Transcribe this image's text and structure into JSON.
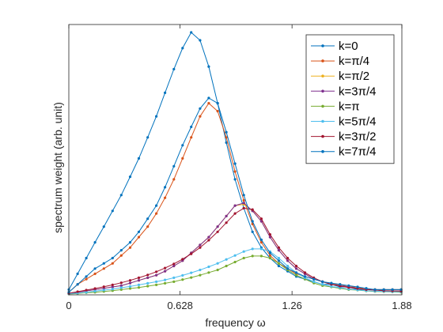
{
  "chart_data": {
    "type": "line",
    "xlabel": "frequency ω",
    "ylabel": "spectrum weight    (arb. unit)",
    "xlim": [
      0,
      1.88
    ],
    "ylim": [
      0,
      1
    ],
    "xticks": [
      {
        "value": 0,
        "label": "0"
      },
      {
        "value": 0.628,
        "label": "0.628"
      },
      {
        "value": 1.26,
        "label": "1.26"
      },
      {
        "value": 1.88,
        "label": "1.88"
      }
    ],
    "grid": false,
    "legend_position": "top-right",
    "series": [
      {
        "name": "k=0",
        "color": "#0072BD",
        "x": [
          0,
          0.0494,
          0.0988,
          0.148,
          0.198,
          0.247,
          0.296,
          0.346,
          0.395,
          0.445,
          0.494,
          0.543,
          0.593,
          0.642,
          0.691,
          0.741,
          0.79,
          0.84,
          0.889,
          0.938,
          0.988,
          1.037,
          1.087,
          1.136,
          1.185,
          1.235,
          1.284,
          1.333,
          1.383,
          1.432,
          1.482,
          1.531,
          1.58,
          1.63,
          1.679,
          1.728,
          1.778,
          1.827,
          1.876
        ],
        "y": [
          0.02,
          0.08,
          0.14,
          0.2,
          0.26,
          0.32,
          0.38,
          0.45,
          0.52,
          0.6,
          0.68,
          0.77,
          0.86,
          0.94,
          1.0,
          0.97,
          0.87,
          0.73,
          0.58,
          0.44,
          0.33,
          0.24,
          0.18,
          0.14,
          0.11,
          0.09,
          0.07,
          0.06,
          0.05,
          0.04,
          0.04,
          0.03,
          0.03,
          0.02,
          0.02,
          0.02,
          0.02,
          0.02,
          0.02
        ]
      },
      {
        "name": "k=π/4",
        "color": "#D95319",
        "x": [
          0,
          0.0494,
          0.0988,
          0.148,
          0.198,
          0.247,
          0.296,
          0.346,
          0.395,
          0.445,
          0.494,
          0.543,
          0.593,
          0.642,
          0.691,
          0.741,
          0.79,
          0.84,
          0.889,
          0.938,
          0.988,
          1.037,
          1.087,
          1.136,
          1.185,
          1.235,
          1.284,
          1.333,
          1.383,
          1.432,
          1.482,
          1.531,
          1.58,
          1.63,
          1.679,
          1.728,
          1.778,
          1.827,
          1.876
        ],
        "y": [
          0.01,
          0.04,
          0.06,
          0.08,
          0.1,
          0.12,
          0.15,
          0.18,
          0.22,
          0.26,
          0.31,
          0.37,
          0.44,
          0.52,
          0.6,
          0.68,
          0.73,
          0.7,
          0.6,
          0.47,
          0.36,
          0.27,
          0.2,
          0.15,
          0.12,
          0.1,
          0.08,
          0.07,
          0.06,
          0.05,
          0.04,
          0.04,
          0.03,
          0.03,
          0.02,
          0.02,
          0.02,
          0.02,
          0.02
        ]
      },
      {
        "name": "k=π/2",
        "color": "#EDB120",
        "x": [
          0,
          0.0494,
          0.0988,
          0.148,
          0.198,
          0.247,
          0.296,
          0.346,
          0.395,
          0.445,
          0.494,
          0.543,
          0.593,
          0.642,
          0.691,
          0.741,
          0.79,
          0.84,
          0.889,
          0.938,
          0.988,
          1.037,
          1.087,
          1.136,
          1.185,
          1.235,
          1.284,
          1.333,
          1.383,
          1.432,
          1.482,
          1.531,
          1.58,
          1.63,
          1.679,
          1.728,
          1.778,
          1.827,
          1.876
        ],
        "y": [
          0.005,
          0.01,
          0.015,
          0.02,
          0.025,
          0.03,
          0.035,
          0.045,
          0.055,
          0.065,
          0.075,
          0.09,
          0.11,
          0.13,
          0.16,
          0.19,
          0.22,
          0.26,
          0.3,
          0.34,
          0.345,
          0.32,
          0.28,
          0.22,
          0.17,
          0.13,
          0.1,
          0.08,
          0.06,
          0.05,
          0.04,
          0.035,
          0.03,
          0.025,
          0.02,
          0.02,
          0.015,
          0.015,
          0.015
        ]
      },
      {
        "name": "k=3π/4",
        "color": "#7E2F8E",
        "x": [
          0,
          0.0494,
          0.0988,
          0.148,
          0.198,
          0.247,
          0.296,
          0.346,
          0.395,
          0.445,
          0.494,
          0.543,
          0.593,
          0.642,
          0.691,
          0.741,
          0.79,
          0.84,
          0.889,
          0.938,
          0.988,
          1.037,
          1.087,
          1.136,
          1.185,
          1.235,
          1.284,
          1.333,
          1.383,
          1.432,
          1.482,
          1.531,
          1.58,
          1.63,
          1.679,
          1.728,
          1.778,
          1.827,
          1.876
        ],
        "y": [
          0.005,
          0.01,
          0.015,
          0.02,
          0.025,
          0.03,
          0.035,
          0.045,
          0.055,
          0.065,
          0.075,
          0.09,
          0.11,
          0.13,
          0.16,
          0.19,
          0.22,
          0.26,
          0.3,
          0.34,
          0.35,
          0.32,
          0.28,
          0.22,
          0.17,
          0.13,
          0.1,
          0.08,
          0.06,
          0.05,
          0.04,
          0.035,
          0.03,
          0.025,
          0.02,
          0.02,
          0.015,
          0.015,
          0.015
        ]
      },
      {
        "name": "k=π",
        "color": "#77AC30",
        "x": [
          0,
          0.0494,
          0.0988,
          0.148,
          0.198,
          0.247,
          0.296,
          0.346,
          0.395,
          0.445,
          0.494,
          0.543,
          0.593,
          0.642,
          0.691,
          0.741,
          0.79,
          0.84,
          0.889,
          0.938,
          0.988,
          1.037,
          1.087,
          1.136,
          1.185,
          1.235,
          1.284,
          1.333,
          1.383,
          1.432,
          1.482,
          1.531,
          1.58,
          1.63,
          1.679,
          1.728,
          1.778,
          1.827,
          1.876
        ],
        "y": [
          0.003,
          0.005,
          0.008,
          0.01,
          0.013,
          0.016,
          0.02,
          0.024,
          0.028,
          0.033,
          0.038,
          0.044,
          0.05,
          0.058,
          0.066,
          0.075,
          0.085,
          0.095,
          0.11,
          0.125,
          0.14,
          0.148,
          0.148,
          0.14,
          0.12,
          0.095,
          0.075,
          0.06,
          0.045,
          0.035,
          0.03,
          0.025,
          0.02,
          0.018,
          0.015,
          0.013,
          0.012,
          0.011,
          0.01
        ]
      },
      {
        "name": "k=5π/4",
        "color": "#4DBEEE",
        "x": [
          0,
          0.0494,
          0.0988,
          0.148,
          0.198,
          0.247,
          0.296,
          0.346,
          0.395,
          0.445,
          0.494,
          0.543,
          0.593,
          0.642,
          0.691,
          0.741,
          0.79,
          0.84,
          0.889,
          0.938,
          0.988,
          1.037,
          1.087,
          1.136,
          1.185,
          1.235,
          1.284,
          1.333,
          1.383,
          1.432,
          1.482,
          1.531,
          1.58,
          1.63,
          1.679,
          1.728,
          1.778,
          1.827,
          1.876
        ],
        "y": [
          0.004,
          0.007,
          0.01,
          0.014,
          0.018,
          0.022,
          0.027,
          0.032,
          0.038,
          0.044,
          0.05,
          0.057,
          0.065,
          0.074,
          0.084,
          0.095,
          0.107,
          0.12,
          0.135,
          0.15,
          0.165,
          0.175,
          0.175,
          0.165,
          0.14,
          0.11,
          0.085,
          0.065,
          0.05,
          0.04,
          0.032,
          0.027,
          0.022,
          0.019,
          0.016,
          0.014,
          0.013,
          0.012,
          0.011
        ]
      },
      {
        "name": "k=3π/2",
        "color": "#A2142F",
        "x": [
          0,
          0.0494,
          0.0988,
          0.148,
          0.198,
          0.247,
          0.296,
          0.346,
          0.395,
          0.445,
          0.494,
          0.543,
          0.593,
          0.642,
          0.691,
          0.741,
          0.79,
          0.84,
          0.889,
          0.938,
          0.988,
          1.037,
          1.087,
          1.136,
          1.185,
          1.235,
          1.284,
          1.333,
          1.383,
          1.432,
          1.482,
          1.531,
          1.58,
          1.63,
          1.679,
          1.728,
          1.778,
          1.827,
          1.876
        ],
        "y": [
          0.006,
          0.012,
          0.018,
          0.024,
          0.031,
          0.038,
          0.046,
          0.055,
          0.065,
          0.076,
          0.088,
          0.102,
          0.118,
          0.136,
          0.156,
          0.18,
          0.208,
          0.24,
          0.275,
          0.31,
          0.33,
          0.325,
          0.29,
          0.23,
          0.18,
          0.14,
          0.11,
          0.085,
          0.065,
          0.05,
          0.04,
          0.033,
          0.028,
          0.024,
          0.02,
          0.018,
          0.016,
          0.015,
          0.014
        ]
      },
      {
        "name": "k=7π/4",
        "color": "#0072BD",
        "x": [
          0,
          0.0494,
          0.0988,
          0.148,
          0.198,
          0.247,
          0.296,
          0.346,
          0.395,
          0.445,
          0.494,
          0.543,
          0.593,
          0.642,
          0.691,
          0.741,
          0.79,
          0.84,
          0.889,
          0.938,
          0.988,
          1.037,
          1.087,
          1.136,
          1.185,
          1.235,
          1.284,
          1.333,
          1.383,
          1.432,
          1.482,
          1.531,
          1.58,
          1.63,
          1.679,
          1.728,
          1.778,
          1.827,
          1.876
        ],
        "y": [
          0.01,
          0.04,
          0.07,
          0.1,
          0.12,
          0.14,
          0.17,
          0.2,
          0.24,
          0.29,
          0.34,
          0.41,
          0.49,
          0.57,
          0.64,
          0.71,
          0.75,
          0.73,
          0.62,
          0.5,
          0.38,
          0.28,
          0.21,
          0.16,
          0.13,
          0.1,
          0.085,
          0.07,
          0.06,
          0.05,
          0.045,
          0.04,
          0.035,
          0.03,
          0.025,
          0.02,
          0.02,
          0.02,
          0.02
        ]
      }
    ]
  }
}
